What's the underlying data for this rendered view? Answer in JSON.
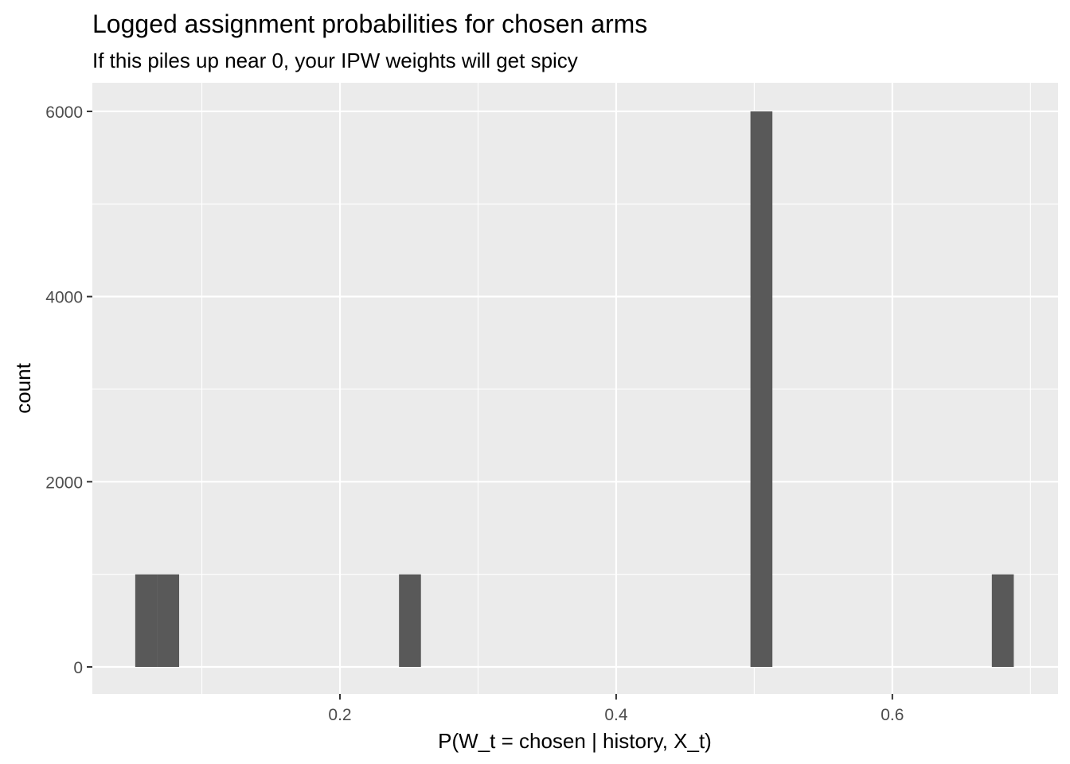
{
  "chart_data": {
    "type": "bar",
    "title": "Logged assignment probabilities for chosen arms",
    "subtitle": "If this piles up near 0, your IPW weights will get spicy",
    "xlabel": "P(W_t = chosen | history, X_t)",
    "ylabel": "count",
    "xlim": [
      0.0207,
      0.72
    ],
    "ylim": [
      -292,
      6309
    ],
    "xticks": [
      {
        "value": 0.2,
        "label": "0.2"
      },
      {
        "value": 0.4,
        "label": "0.4"
      },
      {
        "value": 0.6,
        "label": "0.6"
      }
    ],
    "yticks": [
      {
        "value": 0,
        "label": "0"
      },
      {
        "value": 2000,
        "label": "2000"
      },
      {
        "value": 4000,
        "label": "4000"
      },
      {
        "value": 6000,
        "label": "6000"
      }
    ],
    "xminor": [
      0.1,
      0.3,
      0.5,
      0.7
    ],
    "yminor": [
      1000,
      3000,
      5000
    ],
    "bin_width": 0.0159,
    "bins": [
      {
        "x": 0.0597,
        "count": 1000
      },
      {
        "x": 0.0756,
        "count": 1000
      },
      {
        "x": 0.2507,
        "count": 1000
      },
      {
        "x": 0.5052,
        "count": 6000
      },
      {
        "x": 0.68,
        "count": 1000
      }
    ],
    "grid": true,
    "colors": {
      "panel": "#EBEBEB",
      "bar": "#595959",
      "grid": "#FFFFFF"
    }
  }
}
